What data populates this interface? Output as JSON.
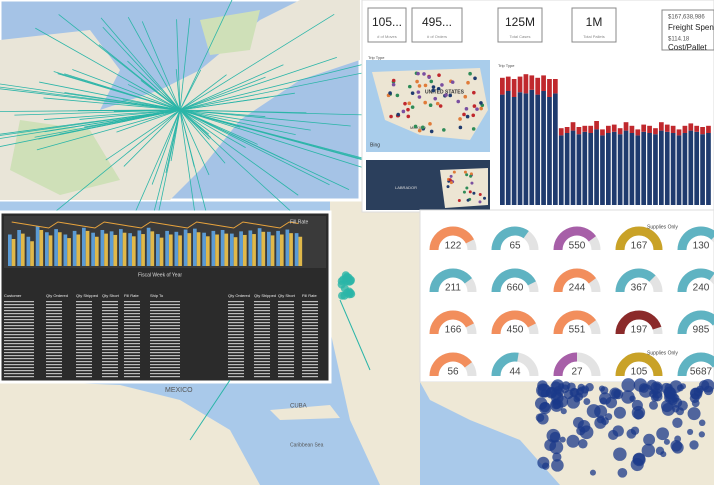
{
  "kpis": [
    {
      "value": "105...",
      "label": "# of Moves"
    },
    {
      "value": "495...",
      "label": "# of Orders"
    },
    {
      "value": "125M",
      "label": "Total Cases"
    },
    {
      "value": "1M",
      "label": "Total Pallets"
    }
  ],
  "freight": {
    "spend": "$167,638,986",
    "spend_label": "Freight Spend",
    "cost": "$114.18",
    "cost_label": "Cost/Pallet"
  },
  "mini_map": {
    "legend": "Trip Type",
    "country": "UNITED STATES",
    "neighbor": "MEXICO",
    "brand": "Bing",
    "region": "LABRADOR"
  },
  "freight_chart": {
    "legend": "Trip Type",
    "navy": [
      92,
      95,
      90,
      94,
      93,
      96,
      92,
      95,
      90,
      93,
      58,
      60,
      62,
      59,
      61,
      60,
      63,
      58,
      60,
      61,
      59,
      62,
      60,
      58,
      61,
      60,
      59,
      62,
      61,
      60,
      58,
      60,
      62,
      61,
      59,
      60
    ],
    "red": [
      14,
      12,
      15,
      13,
      16,
      12,
      14,
      13,
      15,
      12,
      6,
      5,
      7,
      6,
      5,
      6,
      7,
      5,
      6,
      6,
      5,
      7,
      6,
      5,
      6,
      6,
      5,
      7,
      6,
      6,
      5,
      6,
      6,
      5,
      6,
      6
    ],
    "color_navy": "#1f3b6e",
    "color_red": "#c0282d"
  },
  "fiscal_chart": {
    "axis_title": "Fiscal Week of Year",
    "legend": "Fill Rate",
    "bars_a": [
      60,
      72,
      55,
      80,
      68,
      75,
      62,
      70,
      78,
      65,
      72,
      69,
      74,
      66,
      71,
      77,
      63,
      70,
      68,
      73,
      75,
      66,
      70,
      72,
      64,
      69,
      71,
      76,
      68,
      70,
      73,
      65
    ],
    "bars_b": [
      70,
      80,
      65,
      88,
      75,
      82,
      70,
      78,
      85,
      74,
      80,
      77,
      82,
      73,
      79,
      85,
      71,
      78,
      76,
      81,
      83,
      74,
      78,
      80,
      72,
      77,
      79,
      84,
      76,
      78,
      81,
      73
    ],
    "color_a": "#e0b84a",
    "color_b": "#5b9bd5"
  },
  "table": {
    "left_headers": [
      "Customer",
      "Qty Ordered",
      "Qty Shipped",
      "Qty Short",
      "Fill Rate"
    ],
    "right_headers": [
      "Ship To",
      "Qty Ordered",
      "Qty Shipped",
      "Qty Short",
      "Fill Rate"
    ]
  },
  "gauges": [
    {
      "value": 122,
      "color": "#f28e5c",
      "level": 0.85
    },
    {
      "value": 65,
      "color": "#5fb3c2",
      "level": 0.7
    },
    {
      "value": 550,
      "color": "#a75fa8",
      "level": 0.8
    },
    {
      "value": 167,
      "color": "#c9a227",
      "level": 1,
      "note": "Supplies Only"
    },
    {
      "value": 130,
      "color": "#5fb3c2",
      "level": 0.75
    },
    {
      "value": 211,
      "color": "#5fb3c2",
      "level": 0.8
    },
    {
      "value": 660,
      "color": "#5fb3c2",
      "level": 0.85
    },
    {
      "value": 244,
      "color": "#f28e5c",
      "level": 0.8
    },
    {
      "value": 367,
      "color": "#5fb3c2",
      "level": 0.75
    },
    {
      "value": 240,
      "color": "#5fb3c2",
      "level": 0.7
    },
    {
      "value": 166,
      "color": "#f28e5c",
      "level": 0.85
    },
    {
      "value": 450,
      "color": "#f28e5c",
      "level": 0.85
    },
    {
      "value": 551,
      "color": "#f28e5c",
      "level": 0.8
    },
    {
      "value": 197,
      "color": "#8b2a2a",
      "level": 0.9
    },
    {
      "value": 985,
      "color": "#5fb3c2",
      "level": 0.8
    },
    {
      "value": 56,
      "color": "#f28e5c",
      "level": 0.8
    },
    {
      "value": 44,
      "color": "#5fb3c2",
      "level": 0.55
    },
    {
      "value": 27,
      "color": "#a75fa8",
      "level": 0.5
    },
    {
      "value": 105,
      "color": "#c9a227",
      "level": 1,
      "note": "Supplies Only"
    },
    {
      "value": 5687,
      "color": "#5fb3c2",
      "level": 0.8
    }
  ],
  "map": {
    "labels": [
      "MEXICO",
      "CUBA",
      "Caribbean Sea"
    ]
  }
}
